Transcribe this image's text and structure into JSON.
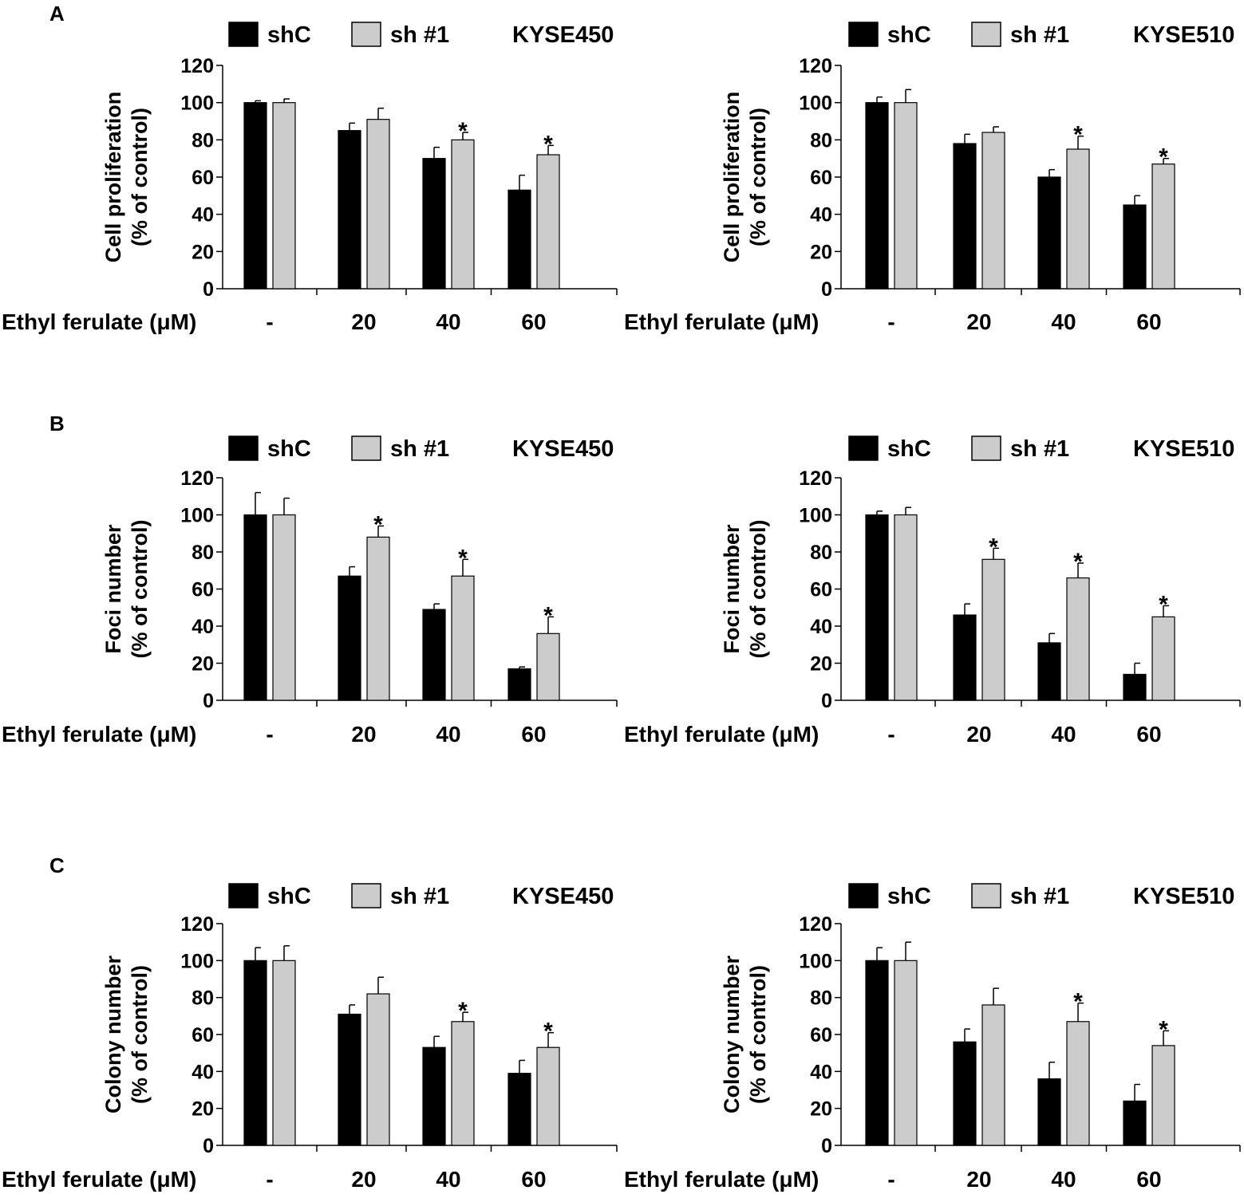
{
  "figure": {
    "panels": [
      {
        "letter": "A",
        "ylabel": [
          "Cell proliferation",
          "(% of control)"
        ]
      },
      {
        "letter": "B",
        "ylabel": [
          "Foci number",
          "(% of control)"
        ]
      },
      {
        "letter": "C",
        "ylabel": [
          "Colony number",
          "(% of control)"
        ]
      }
    ],
    "legend": {
      "series": [
        "shC",
        "sh #1"
      ]
    },
    "x_row_label": "Ethyl ferulate (μM)",
    "cell_lines": [
      "KYSE450",
      "KYSE510"
    ],
    "colors": {
      "shC": "#000000",
      "sh1": "#cccccc",
      "axis": "#000000"
    }
  },
  "chart_data": [
    {
      "type": "bar",
      "panel": "A",
      "cell_line": "KYSE450",
      "title": "KYSE450",
      "ylabel": "Cell proliferation (% of control)",
      "xlabel": "Ethyl ferulate (μM)",
      "categories": [
        "-",
        "20",
        "40",
        "60"
      ],
      "ylim": [
        0,
        120
      ],
      "yticks": [
        0,
        20,
        40,
        60,
        80,
        100,
        120
      ],
      "series": [
        {
          "name": "shC",
          "values": [
            100,
            85,
            70,
            53
          ],
          "errors": [
            1,
            4,
            6,
            8
          ],
          "significant": [
            false,
            false,
            false,
            false
          ]
        },
        {
          "name": "sh #1",
          "values": [
            100,
            91,
            80,
            72
          ],
          "errors": [
            2,
            6,
            4,
            5
          ],
          "significant": [
            false,
            false,
            true,
            true
          ]
        }
      ],
      "significance_marker": "*"
    },
    {
      "type": "bar",
      "panel": "A",
      "cell_line": "KYSE510",
      "title": "KYSE510",
      "ylabel": "Cell proliferation (% of control)",
      "xlabel": "Ethyl ferulate (μM)",
      "categories": [
        "-",
        "20",
        "40",
        "60"
      ],
      "ylim": [
        0,
        120
      ],
      "yticks": [
        0,
        20,
        40,
        60,
        80,
        100,
        120
      ],
      "series": [
        {
          "name": "shC",
          "values": [
            100,
            78,
            60,
            45
          ],
          "errors": [
            3,
            5,
            4,
            5
          ],
          "significant": [
            false,
            false,
            false,
            false
          ]
        },
        {
          "name": "sh #1",
          "values": [
            100,
            84,
            75,
            67
          ],
          "errors": [
            7,
            3,
            7,
            3
          ],
          "significant": [
            false,
            false,
            true,
            true
          ]
        }
      ],
      "significance_marker": "*"
    },
    {
      "type": "bar",
      "panel": "B",
      "cell_line": "KYSE450",
      "title": "KYSE450",
      "ylabel": "Foci number (% of control)",
      "xlabel": "Ethyl ferulate (μM)",
      "categories": [
        "-",
        "20",
        "40",
        "60"
      ],
      "ylim": [
        0,
        120
      ],
      "yticks": [
        0,
        20,
        40,
        60,
        80,
        100,
        120
      ],
      "series": [
        {
          "name": "shC",
          "values": [
            100,
            67,
            49,
            17
          ],
          "errors": [
            12,
            5,
            3,
            1
          ],
          "significant": [
            false,
            false,
            false,
            false
          ]
        },
        {
          "name": "sh #1",
          "values": [
            100,
            88,
            67,
            36
          ],
          "errors": [
            9,
            6,
            9,
            9
          ],
          "significant": [
            false,
            true,
            true,
            true
          ]
        }
      ],
      "significance_marker": "*"
    },
    {
      "type": "bar",
      "panel": "B",
      "cell_line": "KYSE510",
      "title": "KYSE510",
      "ylabel": "Foci number (% of control)",
      "xlabel": "Ethyl ferulate (μM)",
      "categories": [
        "-",
        "20",
        "40",
        "60"
      ],
      "ylim": [
        0,
        120
      ],
      "yticks": [
        0,
        20,
        40,
        60,
        80,
        100,
        120
      ],
      "series": [
        {
          "name": "shC",
          "values": [
            100,
            46,
            31,
            14
          ],
          "errors": [
            2,
            6,
            5,
            6
          ],
          "significant": [
            false,
            false,
            false,
            false
          ]
        },
        {
          "name": "sh #1",
          "values": [
            100,
            76,
            66,
            45
          ],
          "errors": [
            4,
            6,
            8,
            6
          ],
          "significant": [
            false,
            true,
            true,
            true
          ]
        }
      ],
      "significance_marker": "*"
    },
    {
      "type": "bar",
      "panel": "C",
      "cell_line": "KYSE450",
      "title": "KYSE450",
      "ylabel": "Colony number (% of control)",
      "xlabel": "Ethyl ferulate (μM)",
      "categories": [
        "-",
        "20",
        "40",
        "60"
      ],
      "ylim": [
        0,
        120
      ],
      "yticks": [
        0,
        20,
        40,
        60,
        80,
        100,
        120
      ],
      "series": [
        {
          "name": "shC",
          "values": [
            100,
            71,
            53,
            39
          ],
          "errors": [
            7,
            5,
            6,
            7
          ],
          "significant": [
            false,
            false,
            false,
            false
          ]
        },
        {
          "name": "sh #1",
          "values": [
            100,
            82,
            67,
            53
          ],
          "errors": [
            8,
            9,
            5,
            8
          ],
          "significant": [
            false,
            false,
            true,
            true
          ]
        }
      ],
      "significance_marker": "*"
    },
    {
      "type": "bar",
      "panel": "C",
      "cell_line": "KYSE510",
      "title": "KYSE510",
      "ylabel": "Colony number (% of control)",
      "xlabel": "Ethyl ferulate (μM)",
      "categories": [
        "-",
        "20",
        "40",
        "60"
      ],
      "ylim": [
        0,
        120
      ],
      "yticks": [
        0,
        20,
        40,
        60,
        80,
        100,
        120
      ],
      "series": [
        {
          "name": "shC",
          "values": [
            100,
            56,
            36,
            24
          ],
          "errors": [
            7,
            7,
            9,
            9
          ],
          "significant": [
            false,
            false,
            false,
            false
          ]
        },
        {
          "name": "sh #1",
          "values": [
            100,
            76,
            67,
            54
          ],
          "errors": [
            10,
            9,
            10,
            8
          ],
          "significant": [
            false,
            false,
            true,
            true
          ]
        }
      ],
      "significance_marker": "*"
    }
  ]
}
